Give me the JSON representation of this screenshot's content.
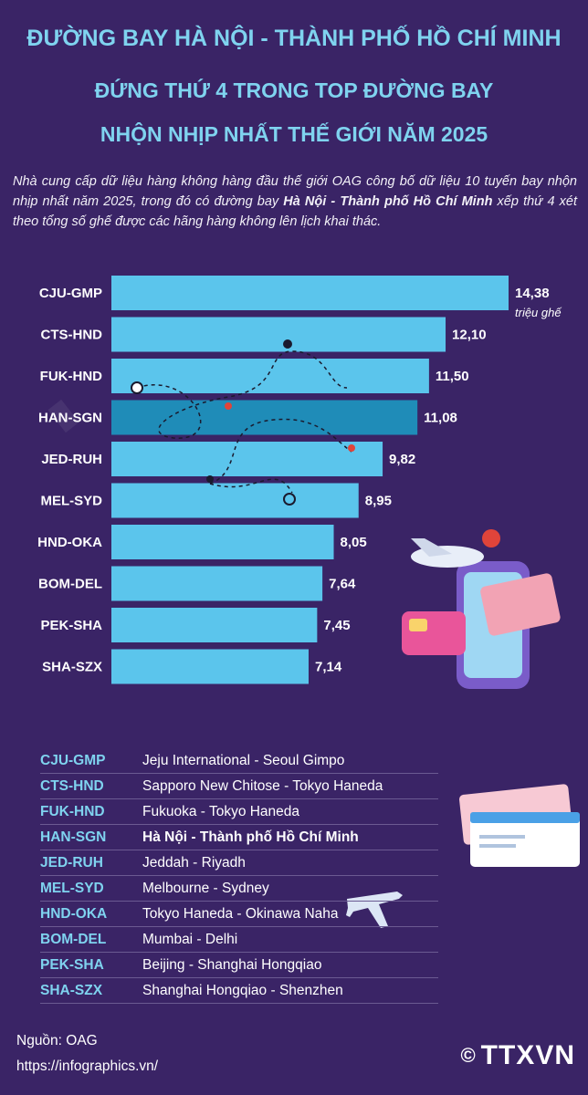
{
  "title": {
    "line1": "ĐƯỜNG BAY HÀ NỘI - THÀNH PHỐ HỒ CHÍ MINH",
    "line2": "ĐỨNG THỨ 4 TRONG TOP ĐƯỜNG BAY",
    "line3": "NHỘN NHỊP NHẤT THẾ GIỚI NĂM 2025"
  },
  "intro": {
    "part1": "Nhà cung cấp dữ liệu hàng không hàng đầu thế giới OAG công bố dữ liệu 10 tuyến bay nhộn nhịp nhất năm 2025, trong đó có đường bay ",
    "bold": "Hà Nội - Thành phố Hồ Chí Minh",
    "part2": " xếp thứ 4 xét theo tổng số ghế được các hãng hàng không lên lịch khai thác."
  },
  "chart_data": {
    "type": "bar",
    "orientation": "horizontal",
    "categories": [
      "CJU-GMP",
      "CTS-HND",
      "FUK-HND",
      "HAN-SGN",
      "JED-RUH",
      "MEL-SYD",
      "HND-OKA",
      "BOM-DEL",
      "PEK-SHA",
      "SHA-SZX"
    ],
    "values": [
      14.38,
      12.1,
      11.5,
      11.08,
      9.82,
      8.95,
      8.05,
      7.64,
      7.45,
      7.14
    ],
    "value_labels": [
      "14,38",
      "12,10",
      "11,50",
      "11,08",
      "9,82",
      "8,95",
      "8,05",
      "7,64",
      "7,45",
      "7,14"
    ],
    "unit": "triệu ghế",
    "highlight": "HAN-SGN",
    "colors": {
      "bar": "#5bc5ec",
      "highlight": "#1f8cb8",
      "label": "#ffffff"
    }
  },
  "legend": [
    {
      "code": "CJU-GMP",
      "name": "Jeju International - Seoul Gimpo"
    },
    {
      "code": "CTS-HND",
      "name": "Sapporo New Chitose - Tokyo Haneda"
    },
    {
      "code": "FUK-HND",
      "name": "Fukuoka - Tokyo Haneda"
    },
    {
      "code": "HAN-SGN",
      "name": "Hà Nội - Thành phố Hồ Chí Minh"
    },
    {
      "code": "JED-RUH",
      "name": "Jeddah - Riyadh"
    },
    {
      "code": "MEL-SYD",
      "name": "Melbourne - Sydney"
    },
    {
      "code": "HND-OKA",
      "name": "Tokyo Haneda - Okinawa Naha"
    },
    {
      "code": "BOM-DEL",
      "name": "Mumbai - Delhi"
    },
    {
      "code": "PEK-SHA",
      "name": "Beijing - Shanghai Hongqiao"
    },
    {
      "code": "SHA-SZX",
      "name": "Shanghai Hongqiao - Shenzhen"
    }
  ],
  "footer": {
    "source": "Nguồn: OAG",
    "url": "https://infographics.vn/",
    "copyright": "©",
    "brand": "TTXVN"
  }
}
